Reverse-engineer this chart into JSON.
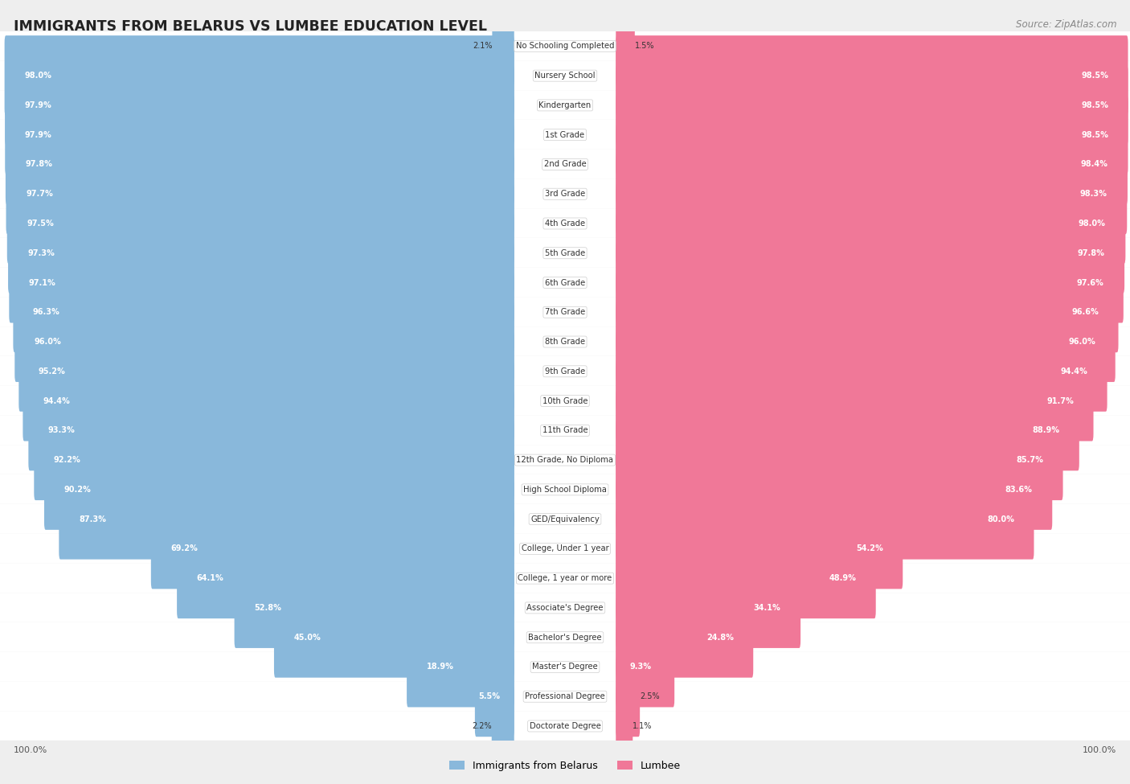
{
  "title": "IMMIGRANTS FROM BELARUS VS LUMBEE EDUCATION LEVEL",
  "source": "Source: ZipAtlas.com",
  "categories": [
    "No Schooling Completed",
    "Nursery School",
    "Kindergarten",
    "1st Grade",
    "2nd Grade",
    "3rd Grade",
    "4th Grade",
    "5th Grade",
    "6th Grade",
    "7th Grade",
    "8th Grade",
    "9th Grade",
    "10th Grade",
    "11th Grade",
    "12th Grade, No Diploma",
    "High School Diploma",
    "GED/Equivalency",
    "College, Under 1 year",
    "College, 1 year or more",
    "Associate's Degree",
    "Bachelor's Degree",
    "Master's Degree",
    "Professional Degree",
    "Doctorate Degree"
  ],
  "belarus_values": [
    2.1,
    98.0,
    97.9,
    97.9,
    97.8,
    97.7,
    97.5,
    97.3,
    97.1,
    96.3,
    96.0,
    95.2,
    94.4,
    93.3,
    92.2,
    90.2,
    87.3,
    69.2,
    64.1,
    52.8,
    45.0,
    18.9,
    5.5,
    2.2
  ],
  "lumbee_values": [
    1.5,
    98.5,
    98.5,
    98.5,
    98.4,
    98.3,
    98.0,
    97.8,
    97.6,
    96.6,
    96.0,
    94.4,
    91.7,
    88.9,
    85.7,
    83.6,
    80.0,
    54.2,
    48.9,
    34.1,
    24.8,
    9.3,
    2.5,
    1.1
  ],
  "belarus_color": "#89b8db",
  "lumbee_color": "#f07898",
  "background_color": "#eeeeee",
  "row_light_color": "#f7f7f7",
  "row_dark_color": "#eeeeee",
  "figsize": [
    14.06,
    9.75
  ],
  "dpi": 100
}
